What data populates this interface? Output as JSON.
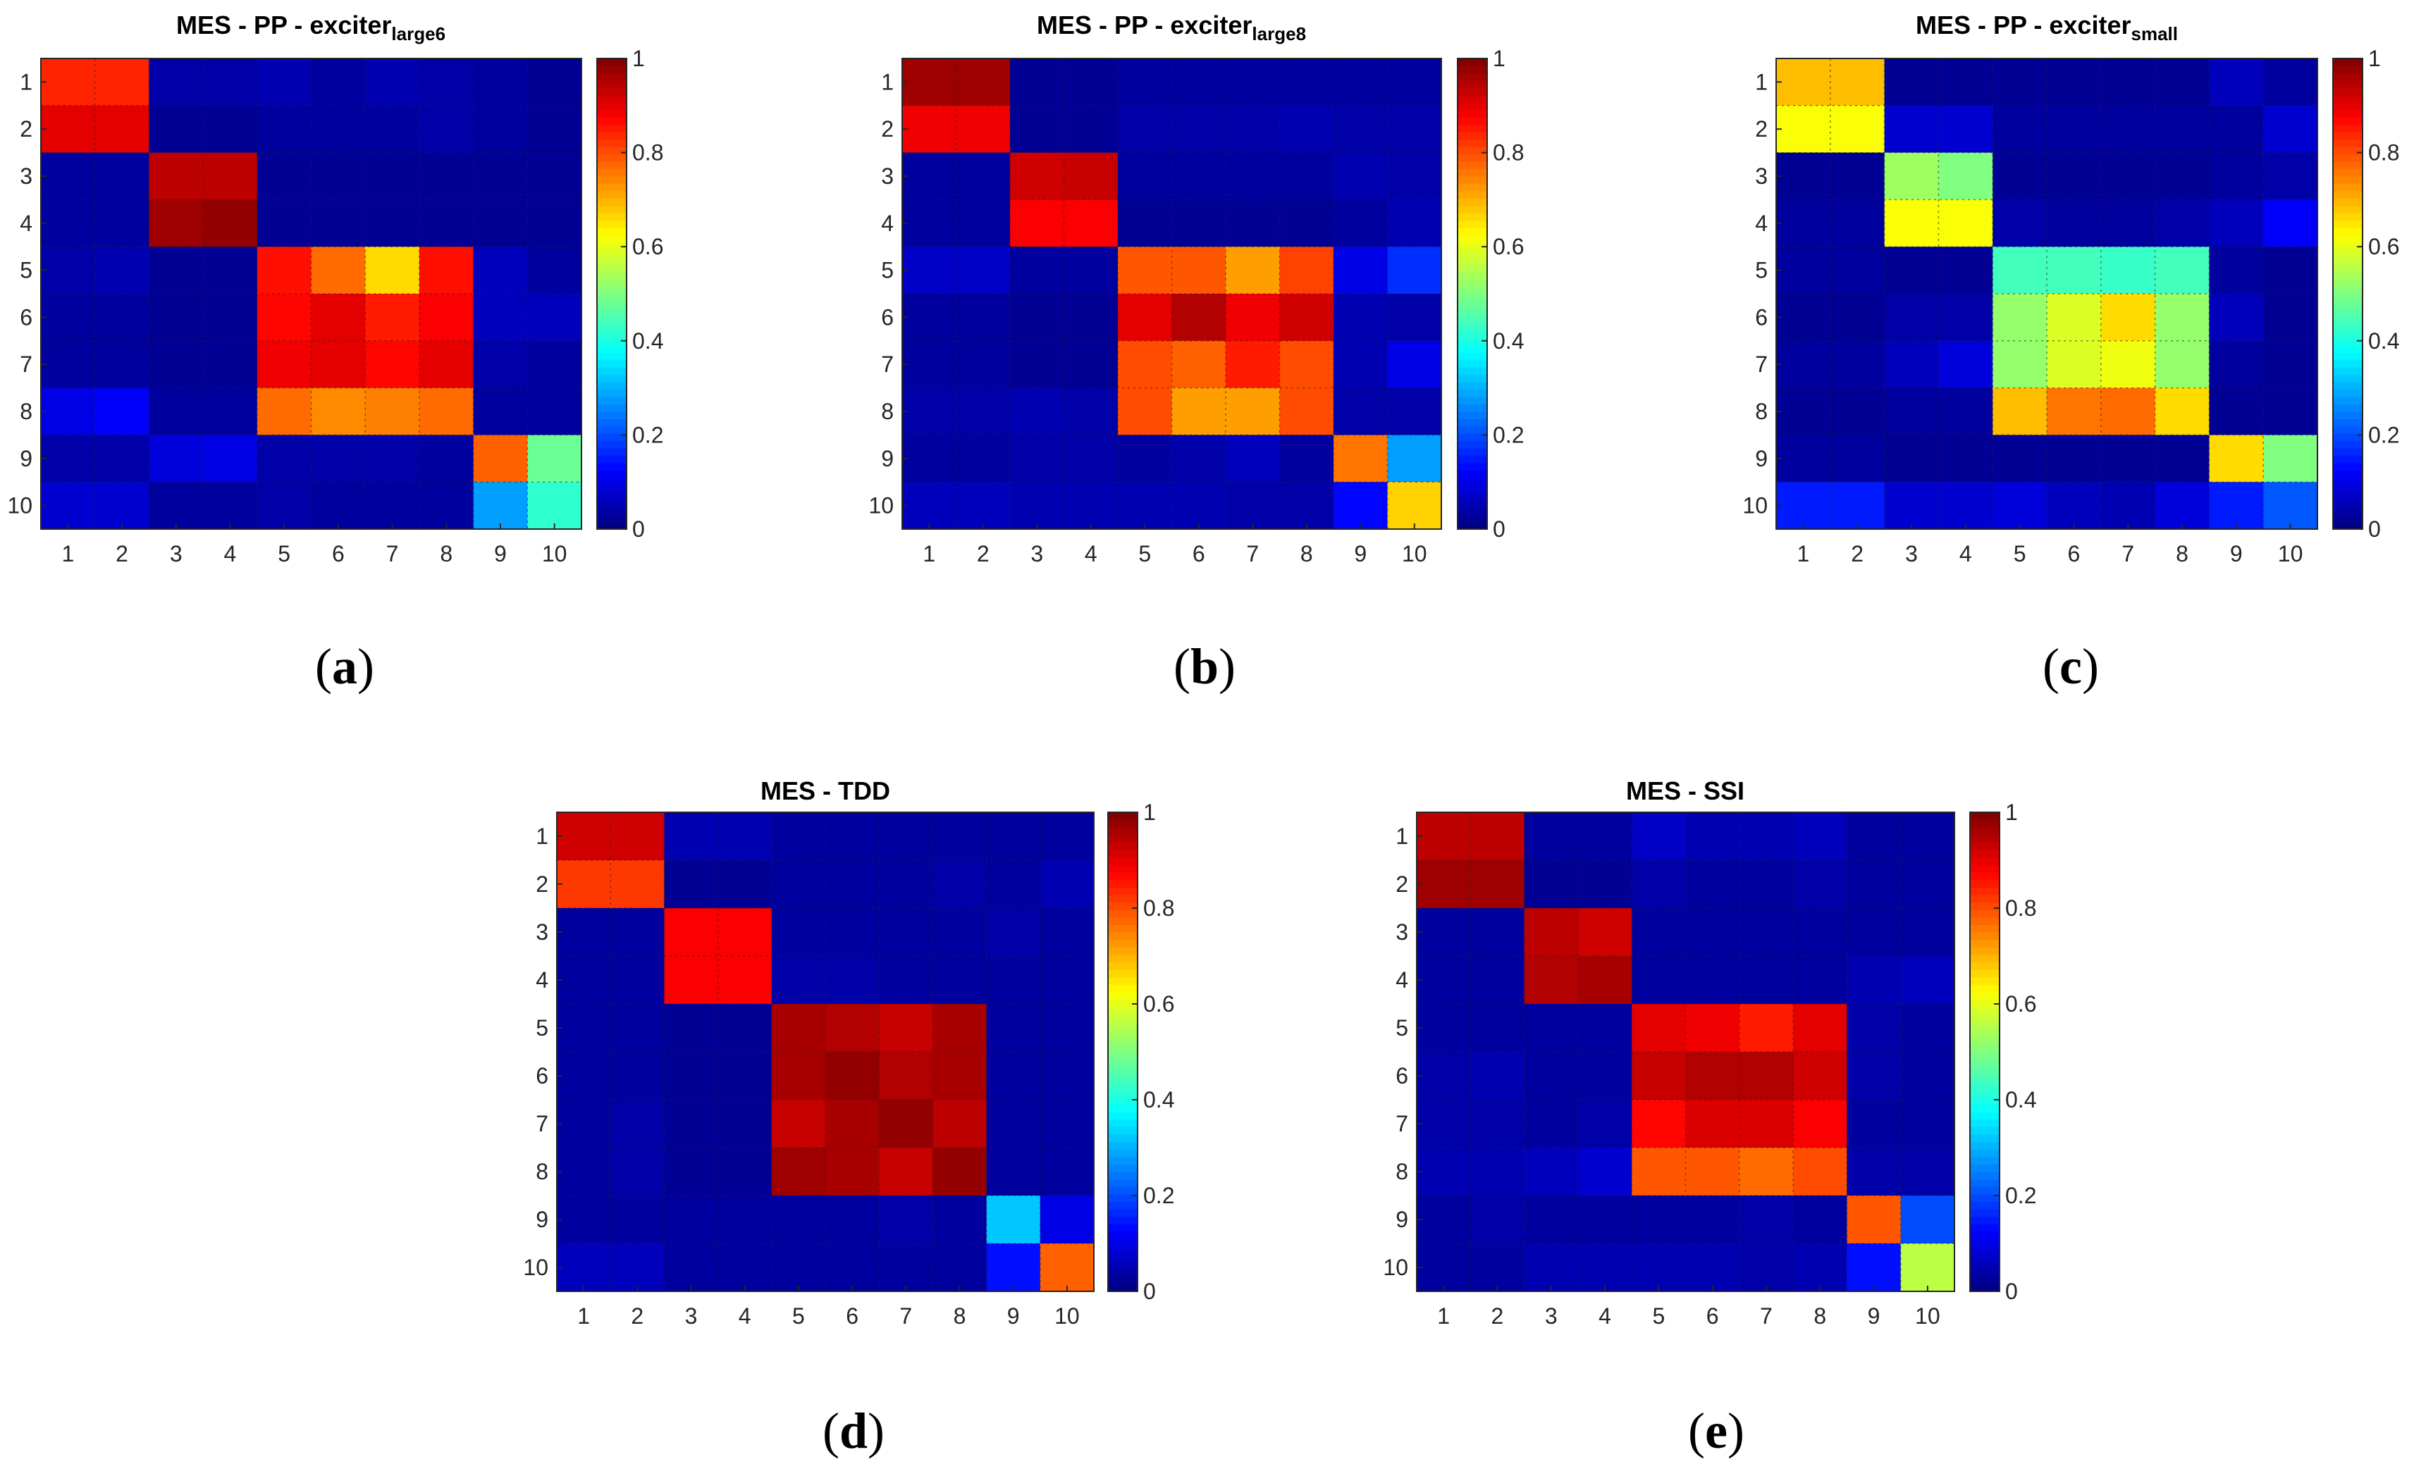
{
  "figure": {
    "panel_labels": [
      "(a)",
      "(b)",
      "(c)",
      "(d)",
      "(e)"
    ]
  },
  "colorbar": {
    "ticks": [
      "0",
      "0.2",
      "0.4",
      "0.6",
      "0.8",
      "1"
    ]
  },
  "chart_data": [
    {
      "type": "heatmap",
      "title": "MES - PP - exciter",
      "title_subscript": "large6",
      "panel": "(a)",
      "x_ticks": [
        "1",
        "2",
        "3",
        "4",
        "5",
        "6",
        "7",
        "8",
        "9",
        "10"
      ],
      "y_ticks": [
        "1",
        "2",
        "3",
        "4",
        "5",
        "6",
        "7",
        "8",
        "9",
        "10"
      ],
      "clim": [
        0,
        1
      ],
      "values": [
        [
          0.84,
          0.84,
          0.04,
          0.04,
          0.05,
          0.03,
          0.05,
          0.04,
          0.03,
          0.02
        ],
        [
          0.9,
          0.9,
          0.02,
          0.02,
          0.03,
          0.03,
          0.03,
          0.04,
          0.03,
          0.02
        ],
        [
          0.03,
          0.03,
          0.94,
          0.94,
          0.02,
          0.02,
          0.02,
          0.02,
          0.02,
          0.02
        ],
        [
          0.03,
          0.03,
          0.97,
          0.98,
          0.02,
          0.02,
          0.02,
          0.02,
          0.02,
          0.02
        ],
        [
          0.04,
          0.05,
          0.02,
          0.02,
          0.86,
          0.77,
          0.66,
          0.86,
          0.06,
          0.03
        ],
        [
          0.03,
          0.03,
          0.02,
          0.02,
          0.87,
          0.9,
          0.85,
          0.88,
          0.06,
          0.06
        ],
        [
          0.03,
          0.03,
          0.02,
          0.02,
          0.89,
          0.9,
          0.87,
          0.9,
          0.04,
          0.03
        ],
        [
          0.1,
          0.12,
          0.03,
          0.03,
          0.77,
          0.74,
          0.75,
          0.77,
          0.03,
          0.03
        ],
        [
          0.04,
          0.04,
          0.09,
          0.1,
          0.04,
          0.04,
          0.04,
          0.03,
          0.78,
          0.48
        ],
        [
          0.08,
          0.08,
          0.03,
          0.03,
          0.04,
          0.03,
          0.03,
          0.03,
          0.28,
          0.42
        ]
      ]
    },
    {
      "type": "heatmap",
      "title": "MES - PP - exciter",
      "title_subscript": "large8",
      "panel": "(b)",
      "x_ticks": [
        "1",
        "2",
        "3",
        "4",
        "5",
        "6",
        "7",
        "8",
        "9",
        "10"
      ],
      "y_ticks": [
        "1",
        "2",
        "3",
        "4",
        "5",
        "6",
        "7",
        "8",
        "9",
        "10"
      ],
      "clim": [
        0,
        1
      ],
      "values": [
        [
          0.97,
          0.97,
          0.02,
          0.02,
          0.03,
          0.03,
          0.03,
          0.03,
          0.03,
          0.03
        ],
        [
          0.89,
          0.89,
          0.02,
          0.02,
          0.04,
          0.04,
          0.04,
          0.05,
          0.04,
          0.04
        ],
        [
          0.03,
          0.03,
          0.92,
          0.93,
          0.03,
          0.03,
          0.03,
          0.03,
          0.05,
          0.04
        ],
        [
          0.03,
          0.03,
          0.88,
          0.88,
          0.02,
          0.02,
          0.02,
          0.02,
          0.03,
          0.05
        ],
        [
          0.07,
          0.07,
          0.03,
          0.03,
          0.79,
          0.79,
          0.72,
          0.81,
          0.1,
          0.17
        ],
        [
          0.03,
          0.03,
          0.02,
          0.02,
          0.9,
          0.95,
          0.89,
          0.92,
          0.05,
          0.04
        ],
        [
          0.03,
          0.03,
          0.02,
          0.02,
          0.8,
          0.78,
          0.85,
          0.8,
          0.05,
          0.1
        ],
        [
          0.04,
          0.04,
          0.05,
          0.04,
          0.8,
          0.72,
          0.72,
          0.8,
          0.04,
          0.04
        ],
        [
          0.03,
          0.03,
          0.04,
          0.04,
          0.03,
          0.04,
          0.06,
          0.03,
          0.76,
          0.28
        ],
        [
          0.06,
          0.06,
          0.05,
          0.05,
          0.05,
          0.05,
          0.04,
          0.04,
          0.13,
          0.67
        ]
      ]
    },
    {
      "type": "heatmap",
      "title": "MES - PP - exciter",
      "title_subscript": "small",
      "panel": "(c)",
      "x_ticks": [
        "1",
        "2",
        "3",
        "4",
        "5",
        "6",
        "7",
        "8",
        "9",
        "10"
      ],
      "y_ticks": [
        "1",
        "2",
        "3",
        "4",
        "5",
        "6",
        "7",
        "8",
        "9",
        "10"
      ],
      "clim": [
        0,
        1
      ],
      "values": [
        [
          0.69,
          0.69,
          0.02,
          0.02,
          0.02,
          0.02,
          0.02,
          0.02,
          0.06,
          0.03
        ],
        [
          0.62,
          0.62,
          0.08,
          0.08,
          0.03,
          0.03,
          0.03,
          0.03,
          0.03,
          0.08
        ],
        [
          0.02,
          0.02,
          0.53,
          0.5,
          0.02,
          0.02,
          0.02,
          0.02,
          0.03,
          0.04
        ],
        [
          0.03,
          0.03,
          0.62,
          0.62,
          0.04,
          0.03,
          0.03,
          0.04,
          0.06,
          0.12
        ],
        [
          0.03,
          0.03,
          0.02,
          0.02,
          0.44,
          0.44,
          0.43,
          0.44,
          0.03,
          0.02
        ],
        [
          0.02,
          0.02,
          0.04,
          0.04,
          0.52,
          0.59,
          0.66,
          0.52,
          0.06,
          0.02
        ],
        [
          0.03,
          0.03,
          0.06,
          0.09,
          0.52,
          0.59,
          0.61,
          0.52,
          0.03,
          0.02
        ],
        [
          0.02,
          0.02,
          0.03,
          0.03,
          0.69,
          0.76,
          0.77,
          0.66,
          0.02,
          0.02
        ],
        [
          0.03,
          0.03,
          0.02,
          0.02,
          0.02,
          0.02,
          0.02,
          0.02,
          0.66,
          0.5
        ],
        [
          0.15,
          0.15,
          0.08,
          0.08,
          0.09,
          0.06,
          0.05,
          0.09,
          0.15,
          0.21
        ]
      ]
    },
    {
      "type": "heatmap",
      "title": "MES - TDD",
      "title_subscript": "",
      "panel": "(d)",
      "x_ticks": [
        "1",
        "2",
        "3",
        "4",
        "5",
        "6",
        "7",
        "8",
        "9",
        "10"
      ],
      "y_ticks": [
        "1",
        "2",
        "3",
        "4",
        "5",
        "6",
        "7",
        "8",
        "9",
        "10"
      ],
      "clim": [
        0,
        1
      ],
      "values": [
        [
          0.92,
          0.92,
          0.05,
          0.05,
          0.03,
          0.03,
          0.03,
          0.03,
          0.03,
          0.03
        ],
        [
          0.82,
          0.82,
          0.02,
          0.02,
          0.03,
          0.03,
          0.03,
          0.04,
          0.03,
          0.05
        ],
        [
          0.03,
          0.03,
          0.88,
          0.88,
          0.03,
          0.03,
          0.03,
          0.03,
          0.04,
          0.03
        ],
        [
          0.03,
          0.03,
          0.88,
          0.88,
          0.04,
          0.04,
          0.03,
          0.03,
          0.03,
          0.03
        ],
        [
          0.03,
          0.03,
          0.02,
          0.02,
          0.96,
          0.95,
          0.93,
          0.96,
          0.03,
          0.03
        ],
        [
          0.03,
          0.03,
          0.02,
          0.02,
          0.96,
          0.98,
          0.95,
          0.96,
          0.03,
          0.03
        ],
        [
          0.03,
          0.04,
          0.02,
          0.02,
          0.93,
          0.96,
          0.98,
          0.94,
          0.03,
          0.03
        ],
        [
          0.03,
          0.04,
          0.02,
          0.02,
          0.97,
          0.96,
          0.93,
          0.98,
          0.03,
          0.03
        ],
        [
          0.03,
          0.03,
          0.03,
          0.03,
          0.03,
          0.03,
          0.04,
          0.03,
          0.32,
          0.1
        ],
        [
          0.06,
          0.06,
          0.03,
          0.03,
          0.03,
          0.03,
          0.03,
          0.03,
          0.14,
          0.78
        ]
      ]
    },
    {
      "type": "heatmap",
      "title": "MES - SSI",
      "title_subscript": "",
      "panel": "(e)",
      "x_ticks": [
        "1",
        "2",
        "3",
        "4",
        "5",
        "6",
        "7",
        "8",
        "9",
        "10"
      ],
      "y_ticks": [
        "1",
        "2",
        "3",
        "4",
        "5",
        "6",
        "7",
        "8",
        "9",
        "10"
      ],
      "clim": [
        0,
        1
      ],
      "values": [
        [
          0.94,
          0.94,
          0.03,
          0.03,
          0.07,
          0.05,
          0.05,
          0.06,
          0.03,
          0.03
        ],
        [
          0.97,
          0.97,
          0.02,
          0.02,
          0.04,
          0.03,
          0.03,
          0.04,
          0.03,
          0.03
        ],
        [
          0.03,
          0.03,
          0.94,
          0.92,
          0.03,
          0.03,
          0.03,
          0.03,
          0.03,
          0.03
        ],
        [
          0.03,
          0.03,
          0.95,
          0.96,
          0.03,
          0.03,
          0.03,
          0.03,
          0.05,
          0.06
        ],
        [
          0.03,
          0.03,
          0.03,
          0.03,
          0.9,
          0.89,
          0.85,
          0.9,
          0.04,
          0.03
        ],
        [
          0.04,
          0.05,
          0.03,
          0.03,
          0.93,
          0.95,
          0.95,
          0.92,
          0.04,
          0.03
        ],
        [
          0.04,
          0.04,
          0.03,
          0.04,
          0.87,
          0.91,
          0.91,
          0.88,
          0.03,
          0.03
        ],
        [
          0.05,
          0.05,
          0.06,
          0.08,
          0.79,
          0.79,
          0.77,
          0.8,
          0.04,
          0.04
        ],
        [
          0.03,
          0.04,
          0.03,
          0.03,
          0.03,
          0.03,
          0.04,
          0.03,
          0.79,
          0.2
        ],
        [
          0.03,
          0.03,
          0.05,
          0.05,
          0.05,
          0.05,
          0.04,
          0.05,
          0.14,
          0.56
        ]
      ]
    }
  ]
}
